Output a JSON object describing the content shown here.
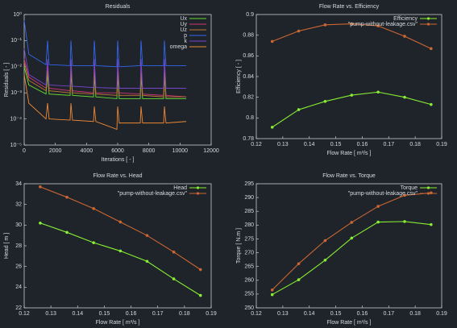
{
  "chart_data": [
    {
      "type": "line",
      "title": "Residuals",
      "xlabel": "Iterations [ - ]",
      "ylabel": "Residuals [ - ]",
      "log_y": true,
      "markers": false,
      "legend": "upper right",
      "xlim": [
        0,
        12000
      ],
      "xticks": [
        0,
        2000,
        4000,
        6000,
        8000,
        10000,
        12000
      ],
      "ylim": [
        1e-05,
        1
      ],
      "yticks": [
        {
          "value": 1e-05,
          "label": "10⁻⁵"
        },
        {
          "value": 0.0001,
          "label": "10⁻⁴"
        },
        {
          "value": 0.001,
          "label": "10⁻³"
        },
        {
          "value": 0.01,
          "label": "10⁻²"
        },
        {
          "value": 0.1,
          "label": "10⁻¹"
        },
        {
          "value": 1,
          "label": "10⁰"
        }
      ],
      "x": [
        0,
        300,
        1400,
        1500,
        1600,
        2950,
        3000,
        3100,
        4450,
        4500,
        4600,
        5950,
        6000,
        6100,
        7450,
        7500,
        7600,
        8950,
        9000,
        9100,
        10400
      ],
      "series": [
        {
          "name": "Ux",
          "color": "#66dd33",
          "values": [
            0.01,
            0.002,
            0.0009,
            0.005,
            0.0009,
            0.0008,
            0.005,
            0.0008,
            0.0007,
            0.004,
            0.0007,
            0.0006,
            0.004,
            0.0006,
            0.0006,
            0.004,
            0.0006,
            0.0006,
            0.004,
            0.0006,
            0.0006
          ]
        },
        {
          "name": "Uy",
          "color": "#cc3377",
          "values": [
            0.02,
            0.004,
            0.0015,
            0.01,
            0.0015,
            0.0012,
            0.01,
            0.0012,
            0.001,
            0.008,
            0.001,
            0.001,
            0.008,
            0.001,
            0.0009,
            0.008,
            0.0009,
            0.0008,
            0.008,
            0.0008,
            0.0007
          ]
        },
        {
          "name": "Uz",
          "color": "#bb7733",
          "values": [
            0.015,
            0.003,
            0.0012,
            0.007,
            0.0012,
            0.001,
            0.007,
            0.001,
            0.0009,
            0.006,
            0.0009,
            0.0008,
            0.006,
            0.0008,
            0.0008,
            0.006,
            0.0008,
            0.0007,
            0.006,
            0.0007,
            0.0007
          ]
        },
        {
          "name": "p",
          "color": "#3366ee",
          "values": [
            0.6,
            0.03,
            0.012,
            0.1,
            0.012,
            0.011,
            0.1,
            0.011,
            0.011,
            0.1,
            0.011,
            0.01,
            0.1,
            0.01,
            0.011,
            0.1,
            0.011,
            0.011,
            0.1,
            0.011,
            0.011
          ]
        },
        {
          "name": "k",
          "color": "#7744cc",
          "values": [
            0.05,
            0.005,
            0.002,
            0.02,
            0.002,
            0.0018,
            0.02,
            0.0018,
            0.0016,
            0.02,
            0.0016,
            0.0015,
            0.02,
            0.0015,
            0.0015,
            0.02,
            0.0015,
            0.0015,
            0.02,
            0.0015,
            0.0015
          ]
        },
        {
          "name": "omega",
          "color": "#ee8833",
          "values": [
            0.005,
            0.0004,
            0.0001,
            0.0004,
            0.0001,
            9e-05,
            0.0004,
            9e-05,
            8e-05,
            0.0003,
            8e-05,
            4e-05,
            0.0003,
            7e-05,
            7e-05,
            0.0003,
            7e-05,
            7e-05,
            0.0003,
            7e-05,
            8e-05
          ]
        }
      ]
    },
    {
      "type": "line",
      "title": "Flow Rate  vs. Efficiency",
      "xlabel": "Flow Rate [ m³/s ]",
      "ylabel": "Efficiency [ - ]",
      "log_y": false,
      "markers": true,
      "legend": "upper right",
      "xlim": [
        0.12,
        0.19
      ],
      "xticks": [
        0.12,
        0.13,
        0.14,
        0.15,
        0.16,
        0.17,
        0.18,
        0.19
      ],
      "ylim": [
        0.78,
        0.9
      ],
      "yticks": [
        0.78,
        0.8,
        0.82,
        0.84,
        0.86,
        0.88,
        0.9
      ],
      "x": [
        0.126,
        0.136,
        0.146,
        0.156,
        0.166,
        0.176,
        0.186
      ],
      "series": [
        {
          "name": "Efficiency",
          "color": "#88ee33",
          "values": [
            0.791,
            0.808,
            0.816,
            0.822,
            0.825,
            0.82,
            0.813
          ]
        },
        {
          "name": "\"pump-without-leakage.csv\"",
          "color": "#cc6633",
          "values": [
            0.874,
            0.884,
            0.89,
            0.891,
            0.889,
            0.879,
            0.867
          ]
        }
      ]
    },
    {
      "type": "line",
      "title": "Flow Rate vs. Head",
      "xlabel": "Flow Rate [ m³/s ]",
      "ylabel": "Head [ m ]",
      "log_y": false,
      "markers": true,
      "legend": "upper right",
      "xlim": [
        0.12,
        0.19
      ],
      "xticks": [
        0.12,
        0.13,
        0.14,
        0.15,
        0.16,
        0.17,
        0.18,
        0.19
      ],
      "ylim": [
        22,
        34
      ],
      "yticks": [
        22,
        24,
        26,
        28,
        30,
        32,
        34
      ],
      "x": [
        0.126,
        0.136,
        0.146,
        0.156,
        0.166,
        0.176,
        0.186
      ],
      "series": [
        {
          "name": "Head",
          "color": "#88ee33",
          "values": [
            30.2,
            29.3,
            28.3,
            27.5,
            26.5,
            24.8,
            23.2
          ]
        },
        {
          "name": "\"pump-without-leakage.csv\"",
          "color": "#cc6633",
          "values": [
            33.7,
            32.7,
            31.6,
            30.3,
            29.0,
            27.4,
            25.7
          ]
        }
      ]
    },
    {
      "type": "line",
      "title": "Flow Rate vs. Torque",
      "xlabel": "Flow Rate [ m³/s ]",
      "ylabel": "Torque [ N.m ]",
      "log_y": false,
      "markers": true,
      "legend": "upper right",
      "xlim": [
        0.12,
        0.19
      ],
      "xticks": [
        0.12,
        0.13,
        0.14,
        0.15,
        0.16,
        0.17,
        0.18,
        0.19
      ],
      "ylim": [
        250,
        295
      ],
      "yticks": [
        250,
        255,
        260,
        265,
        270,
        275,
        280,
        285,
        290,
        295
      ],
      "x": [
        0.126,
        0.136,
        0.146,
        0.156,
        0.166,
        0.176,
        0.186
      ],
      "series": [
        {
          "name": "Torque",
          "color": "#88ee33",
          "values": [
            254.8,
            260.2,
            267.3,
            275.3,
            281.1,
            281.3,
            280.2
          ]
        },
        {
          "name": "\"pump-without-leakage.csv\"",
          "color": "#cc6633",
          "values": [
            256.5,
            266,
            274.4,
            281,
            286.8,
            290.8,
            291.7
          ]
        }
      ]
    }
  ]
}
